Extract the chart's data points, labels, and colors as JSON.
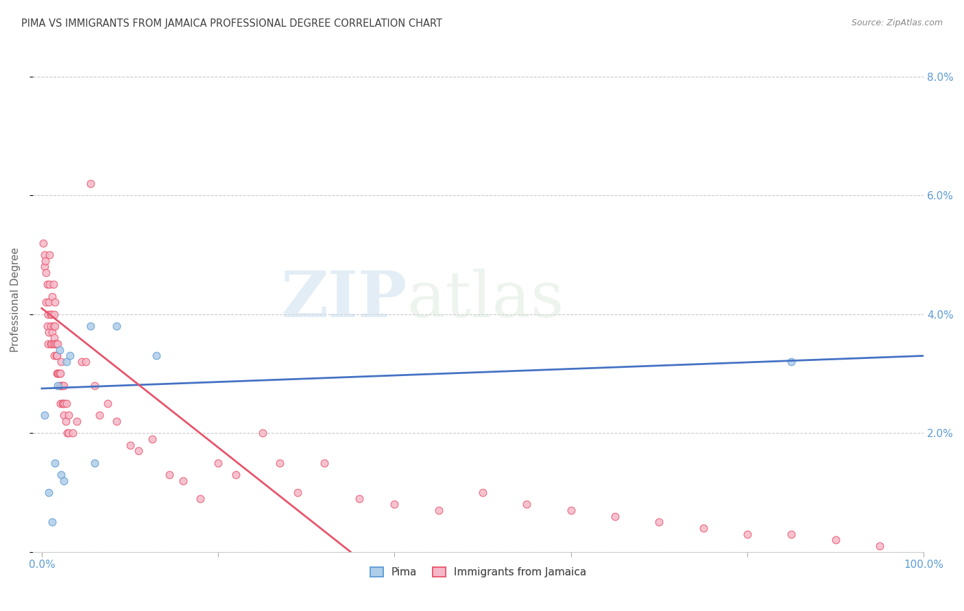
{
  "title": "PIMA VS IMMIGRANTS FROM JAMAICA PROFESSIONAL DEGREE CORRELATION CHART",
  "source": "Source: ZipAtlas.com",
  "ylabel": "Professional Degree",
  "xlim": [
    0,
    100
  ],
  "ylim": [
    0,
    8.5
  ],
  "ytick_vals": [
    0,
    2,
    4,
    6,
    8
  ],
  "ytick_labels": [
    "",
    "2.0%",
    "4.0%",
    "6.0%",
    "8.0%"
  ],
  "xtick_vals": [
    0,
    20,
    40,
    60,
    80,
    100
  ],
  "xtick_labels": [
    "0.0%",
    "",
    "",
    "",
    "",
    "100.0%"
  ],
  "watermark_zip": "ZIP",
  "watermark_atlas": "atlas",
  "pima_color": "#aecde8",
  "jamaica_color": "#f5b8c8",
  "pima_edge_color": "#5b9bd5",
  "jamaica_edge_color": "#e8536a",
  "line_pima_color": "#4472c4",
  "line_jamaica_color": "#e8536a",
  "legend_pima_label": "Pima",
  "legend_jamaica_label": "Immigrants from Jamaica",
  "background_color": "#ffffff",
  "grid_color": "#c8c8c8",
  "title_color": "#404040",
  "axis_color": "#5b9bd5",
  "marker_size": 60,
  "pima_x": [
    0.3,
    0.8,
    1.2,
    1.5,
    1.8,
    2.0,
    2.2,
    2.5,
    2.8,
    3.2,
    5.5,
    6.0,
    8.5,
    13.0,
    85.0
  ],
  "pima_y": [
    2.3,
    1.0,
    0.5,
    1.5,
    2.8,
    3.4,
    1.3,
    1.2,
    3.2,
    3.3,
    3.8,
    1.5,
    3.8,
    3.3,
    3.2
  ],
  "jamaica_x": [
    0.2,
    0.3,
    0.3,
    0.4,
    0.5,
    0.5,
    0.6,
    0.6,
    0.7,
    0.7,
    0.8,
    0.8,
    0.9,
    0.9,
    1.0,
    1.0,
    1.0,
    1.1,
    1.1,
    1.2,
    1.2,
    1.3,
    1.3,
    1.3,
    1.4,
    1.4,
    1.4,
    1.5,
    1.5,
    1.5,
    1.6,
    1.6,
    1.7,
    1.7,
    1.8,
    1.8,
    1.9,
    2.0,
    2.0,
    2.1,
    2.1,
    2.2,
    2.2,
    2.3,
    2.3,
    2.4,
    2.5,
    2.5,
    2.6,
    2.7,
    2.8,
    2.9,
    3.0,
    3.0,
    3.5,
    4.0,
    4.5,
    5.0,
    5.5,
    6.0,
    6.5,
    7.5,
    8.5,
    10.0,
    11.0,
    12.5,
    14.5,
    16.0,
    18.0,
    20.0,
    22.0,
    25.0,
    27.0,
    29.0,
    32.0,
    36.0,
    40.0,
    45.0,
    50.0,
    55.0,
    60.0,
    65.0,
    70.0,
    75.0,
    80.0,
    85.0,
    90.0,
    95.0
  ],
  "jamaica_y": [
    5.2,
    4.8,
    5.0,
    4.9,
    4.2,
    4.7,
    3.8,
    4.5,
    3.5,
    4.0,
    3.7,
    4.2,
    4.5,
    5.0,
    3.5,
    3.8,
    4.0,
    3.5,
    4.0,
    3.7,
    4.3,
    3.5,
    3.8,
    4.5,
    3.3,
    3.6,
    4.0,
    3.5,
    3.8,
    4.2,
    3.3,
    3.5,
    3.0,
    3.3,
    3.0,
    3.5,
    3.0,
    2.8,
    3.0,
    2.5,
    3.0,
    2.8,
    3.2,
    2.5,
    2.8,
    2.5,
    2.3,
    2.8,
    2.5,
    2.2,
    2.5,
    2.0,
    2.0,
    2.3,
    2.0,
    2.2,
    3.2,
    3.2,
    6.2,
    2.8,
    2.3,
    2.5,
    2.2,
    1.8,
    1.7,
    1.9,
    1.3,
    1.2,
    0.9,
    1.5,
    1.3,
    2.0,
    1.5,
    1.0,
    1.5,
    0.9,
    0.8,
    0.7,
    1.0,
    0.8,
    0.7,
    0.6,
    0.5,
    0.4,
    0.3,
    0.3,
    0.2,
    0.1
  ],
  "pima_line_x": [
    0,
    100
  ],
  "pima_line_y": [
    2.75,
    3.3
  ],
  "jamaica_line_x": [
    0,
    35
  ],
  "jamaica_line_y": [
    4.1,
    0.0
  ]
}
